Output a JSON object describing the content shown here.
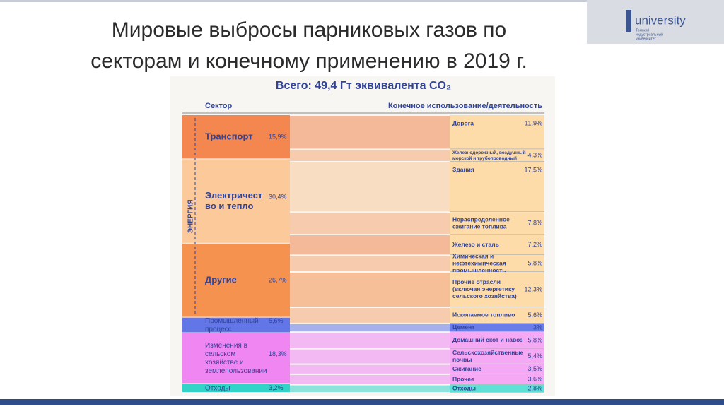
{
  "chart_data": {
    "type": "sankey",
    "title": [
      "Мировые выбросы парниковых газов по",
      "секторам и конечному применению в 2019 г."
    ],
    "subtitle": "Всего: 49,4 Гт эквивалента CO₂",
    "left_header": "Сектор",
    "right_header": "Конечное использование/деятельность",
    "group_label": "ЭНЕРГИЯ",
    "logo": {
      "name": "university",
      "lines": [
        "Томский",
        "индустриальный",
        "университет"
      ]
    },
    "sources": [
      {
        "lines": [
          "Транспорт"
        ],
        "value": 15.9,
        "value_label": "15,9%",
        "color": "#f3874f",
        "bold": true
      },
      {
        "lines": [
          "Электричест",
          "во и тепло"
        ],
        "value": 30.4,
        "value_label": "30,4%",
        "color": "#fcc99b",
        "bold": true
      },
      {
        "lines": [
          "Другие"
        ],
        "value": 26.7,
        "value_label": "26,7%",
        "color": "#f6924f",
        "bold": true
      },
      {
        "lines": [
          "Промышленный",
          "процесс"
        ],
        "value": 5.6,
        "value_label": "5,6%",
        "color": "#6376e8",
        "bold": false
      },
      {
        "lines": [
          "Изменения в",
          "сельском",
          "хозяйстве и",
          "землепользовании"
        ],
        "value": 18.3,
        "value_label": "18,3%",
        "color": "#ef86f2",
        "bold": false
      },
      {
        "lines": [
          "Отходы"
        ],
        "value": 3.2,
        "value_label": "3,2%",
        "color": "#33d4c8",
        "bold": false
      }
    ],
    "targets": [
      {
        "lines": [
          "Дорога"
        ],
        "value": 11.9,
        "value_label": "11,9%",
        "color": "#f3874f",
        "bg": "#fddca9"
      },
      {
        "lines": [
          "Железнодорожный, воздушный",
          "морской и трубопроводный"
        ],
        "value": 4.3,
        "value_label": "4,3%",
        "color": "#f7a874",
        "bg": "#fddca9"
      },
      {
        "lines": [
          "Здания"
        ],
        "value": 17.5,
        "value_label": "17,5%",
        "color": "#fcc99b",
        "bg": "#fddca9"
      },
      {
        "lines": [
          "Нераспределенное",
          "сжигание топлива"
        ],
        "value": 7.8,
        "value_label": "7,8%",
        "color": "#f7a874",
        "bg": "#fddca9"
      },
      {
        "lines": [
          "Железо и сталь"
        ],
        "value": 7.2,
        "value_label": "7,2%",
        "color": "#f3874f",
        "bg": "#fddca9"
      },
      {
        "lines": [
          "Химическая и",
          "нефтехимическая",
          "промышленность"
        ],
        "value": 5.8,
        "value_label": "5,8%",
        "color": "#f7a874",
        "bg": "#fddca9"
      },
      {
        "lines": [
          "Прочие отрасли",
          "(включая энергетику",
          "сельского хозяйства)"
        ],
        "value": 12.3,
        "value_label": "12,3%",
        "color": "#f6924f",
        "bg": "#fddca9"
      },
      {
        "lines": [
          "Ископаемое топливо"
        ],
        "value": 5.6,
        "value_label": "5,6%",
        "color": "#f7a874",
        "bg": "#fddca9"
      },
      {
        "lines": [
          "Цемент"
        ],
        "value": 3,
        "value_label": "3%",
        "color": "#6376e8",
        "bg": "#6a7ce8"
      },
      {
        "lines": [
          "Домашний скот и навоз"
        ],
        "value": 5.8,
        "value_label": "5,8%",
        "color": "#ef86f2",
        "bg": "#f5a9f5"
      },
      {
        "lines": [
          "Сельскохозяйственные",
          "почвы"
        ],
        "value": 5.4,
        "value_label": "5,4%",
        "color": "#ef86f2",
        "bg": "#f5a9f5"
      },
      {
        "lines": [
          "Сжигание"
        ],
        "value": 3.5,
        "value_label": "3,5%",
        "color": "#ef86f2",
        "bg": "#f5a9f5"
      },
      {
        "lines": [
          "Прочее"
        ],
        "value": 3.6,
        "value_label": "3,6%",
        "color": "#ef86f2",
        "bg": "#f5a9f5"
      },
      {
        "lines": [
          "Отходы"
        ],
        "value": 2.8,
        "value_label": "2,8%",
        "color": "#33d4c8",
        "bg": "#5fe0d6"
      }
    ]
  }
}
